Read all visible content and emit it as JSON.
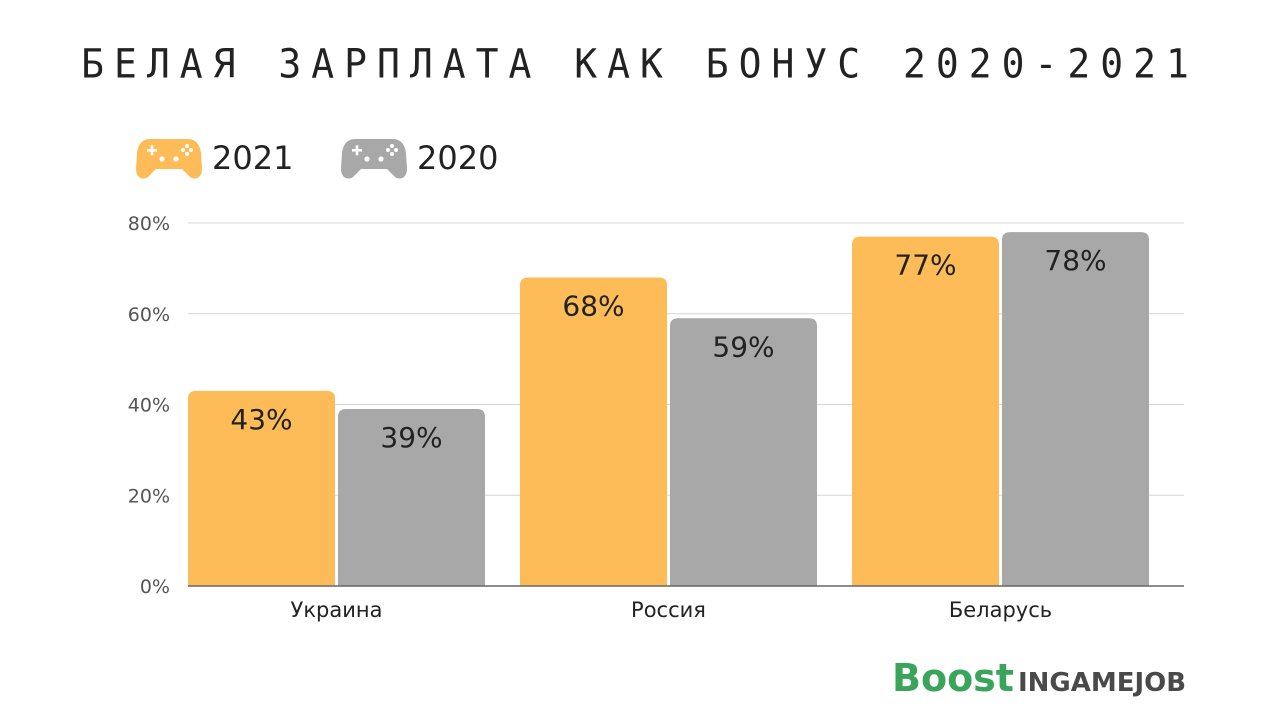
{
  "colors": {
    "y2021": "#fdbc58",
    "y2020": "#a8a8a8",
    "grid": "#d6d6d6",
    "axis": "#555555",
    "text": "#222222",
    "brand_green": "#3aa55a",
    "brand_gray": "#4a4a4a"
  },
  "legend": [
    {
      "label": "2021",
      "icon": "gamepad-icon",
      "color": "#fdbc58"
    },
    {
      "label": "2020",
      "icon": "gamepad-icon",
      "color": "#a8a8a8"
    }
  ],
  "brand": {
    "part1": "Boost",
    "part2": "INGAMEJOB"
  },
  "chart_data": {
    "type": "bar",
    "title": "БЕЛАЯ ЗАРПЛАТА КАК БОНУС 2020-2021",
    "categories": [
      "Украина",
      "Россия",
      "Беларусь"
    ],
    "series": [
      {
        "name": "2021",
        "values": [
          43,
          68,
          77
        ],
        "labels": [
          "43%",
          "68%",
          "77%"
        ],
        "color": "#fdbc58"
      },
      {
        "name": "2020",
        "values": [
          39,
          59,
          78
        ],
        "labels": [
          "39%",
          "59%",
          "78%"
        ],
        "color": "#a8a8a8"
      }
    ],
    "yticks": [
      "0%",
      "20%",
      "40%",
      "60%",
      "80%"
    ],
    "ytick_values": [
      0,
      20,
      40,
      60,
      80
    ],
    "ylim": [
      0,
      80
    ],
    "grid": true,
    "legend_position": "top-left"
  }
}
